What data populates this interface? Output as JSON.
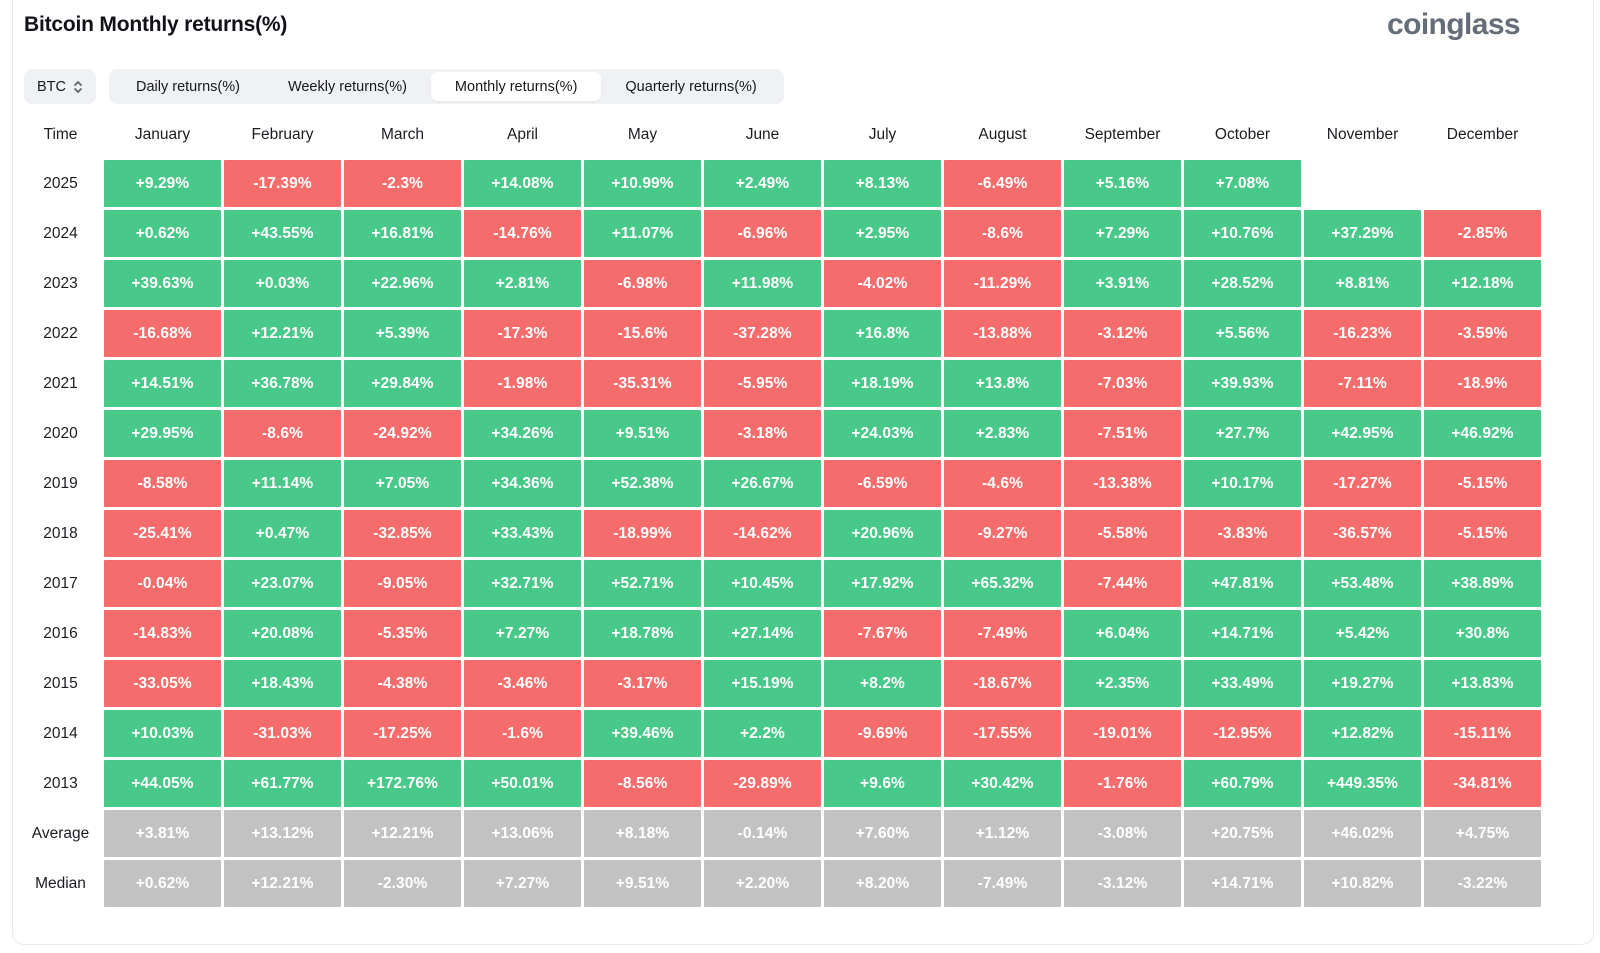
{
  "header": {
    "title": "Bitcoin Monthly returns(%)",
    "logo": "coinglass"
  },
  "controls": {
    "symbol": "BTC",
    "tabs": [
      {
        "label": "Daily returns(%)",
        "active": false
      },
      {
        "label": "Weekly returns(%)",
        "active": false
      },
      {
        "label": "Monthly returns(%)",
        "active": true
      },
      {
        "label": "Quarterly returns(%)",
        "active": false
      }
    ]
  },
  "colors": {
    "positive": "#48c98a",
    "negative": "#f56c6c",
    "summary": "#c2c2c2"
  },
  "table": {
    "corner_label": "Time",
    "months": [
      "January",
      "February",
      "March",
      "April",
      "May",
      "June",
      "July",
      "August",
      "September",
      "October",
      "November",
      "December"
    ],
    "rows": [
      {
        "label": "2025",
        "type": "year",
        "values": [
          "+9.29%",
          "-17.39%",
          "-2.3%",
          "+14.08%",
          "+10.99%",
          "+2.49%",
          "+8.13%",
          "-6.49%",
          "+5.16%",
          "+7.08%",
          "",
          ""
        ]
      },
      {
        "label": "2024",
        "type": "year",
        "values": [
          "+0.62%",
          "+43.55%",
          "+16.81%",
          "-14.76%",
          "+11.07%",
          "-6.96%",
          "+2.95%",
          "-8.6%",
          "+7.29%",
          "+10.76%",
          "+37.29%",
          "-2.85%"
        ]
      },
      {
        "label": "2023",
        "type": "year",
        "values": [
          "+39.63%",
          "+0.03%",
          "+22.96%",
          "+2.81%",
          "-6.98%",
          "+11.98%",
          "-4.02%",
          "-11.29%",
          "+3.91%",
          "+28.52%",
          "+8.81%",
          "+12.18%"
        ]
      },
      {
        "label": "2022",
        "type": "year",
        "values": [
          "-16.68%",
          "+12.21%",
          "+5.39%",
          "-17.3%",
          "-15.6%",
          "-37.28%",
          "+16.8%",
          "-13.88%",
          "-3.12%",
          "+5.56%",
          "-16.23%",
          "-3.59%"
        ]
      },
      {
        "label": "2021",
        "type": "year",
        "values": [
          "+14.51%",
          "+36.78%",
          "+29.84%",
          "-1.98%",
          "-35.31%",
          "-5.95%",
          "+18.19%",
          "+13.8%",
          "-7.03%",
          "+39.93%",
          "-7.11%",
          "-18.9%"
        ]
      },
      {
        "label": "2020",
        "type": "year",
        "values": [
          "+29.95%",
          "-8.6%",
          "-24.92%",
          "+34.26%",
          "+9.51%",
          "-3.18%",
          "+24.03%",
          "+2.83%",
          "-7.51%",
          "+27.7%",
          "+42.95%",
          "+46.92%"
        ]
      },
      {
        "label": "2019",
        "type": "year",
        "values": [
          "-8.58%",
          "+11.14%",
          "+7.05%",
          "+34.36%",
          "+52.38%",
          "+26.67%",
          "-6.59%",
          "-4.6%",
          "-13.38%",
          "+10.17%",
          "-17.27%",
          "-5.15%"
        ]
      },
      {
        "label": "2018",
        "type": "year",
        "values": [
          "-25.41%",
          "+0.47%",
          "-32.85%",
          "+33.43%",
          "-18.99%",
          "-14.62%",
          "+20.96%",
          "-9.27%",
          "-5.58%",
          "-3.83%",
          "-36.57%",
          "-5.15%"
        ]
      },
      {
        "label": "2017",
        "type": "year",
        "values": [
          "-0.04%",
          "+23.07%",
          "-9.05%",
          "+32.71%",
          "+52.71%",
          "+10.45%",
          "+17.92%",
          "+65.32%",
          "-7.44%",
          "+47.81%",
          "+53.48%",
          "+38.89%"
        ]
      },
      {
        "label": "2016",
        "type": "year",
        "values": [
          "-14.83%",
          "+20.08%",
          "-5.35%",
          "+7.27%",
          "+18.78%",
          "+27.14%",
          "-7.67%",
          "-7.49%",
          "+6.04%",
          "+14.71%",
          "+5.42%",
          "+30.8%"
        ]
      },
      {
        "label": "2015",
        "type": "year",
        "values": [
          "-33.05%",
          "+18.43%",
          "-4.38%",
          "-3.46%",
          "-3.17%",
          "+15.19%",
          "+8.2%",
          "-18.67%",
          "+2.35%",
          "+33.49%",
          "+19.27%",
          "+13.83%"
        ]
      },
      {
        "label": "2014",
        "type": "year",
        "values": [
          "+10.03%",
          "-31.03%",
          "-17.25%",
          "-1.6%",
          "+39.46%",
          "+2.2%",
          "-9.69%",
          "-17.55%",
          "-19.01%",
          "-12.95%",
          "+12.82%",
          "-15.11%"
        ]
      },
      {
        "label": "2013",
        "type": "year",
        "values": [
          "+44.05%",
          "+61.77%",
          "+172.76%",
          "+50.01%",
          "-8.56%",
          "-29.89%",
          "+9.6%",
          "+30.42%",
          "-1.76%",
          "+60.79%",
          "+449.35%",
          "-34.81%"
        ]
      },
      {
        "label": "Average",
        "type": "summary",
        "values": [
          "+3.81%",
          "+13.12%",
          "+12.21%",
          "+13.06%",
          "+8.18%",
          "-0.14%",
          "+7.60%",
          "+1.12%",
          "-3.08%",
          "+20.75%",
          "+46.02%",
          "+4.75%"
        ]
      },
      {
        "label": "Median",
        "type": "summary",
        "values": [
          "+0.62%",
          "+12.21%",
          "-2.30%",
          "+7.27%",
          "+9.51%",
          "+2.20%",
          "+8.20%",
          "-7.49%",
          "-3.12%",
          "+14.71%",
          "+10.82%",
          "-3.22%"
        ]
      }
    ]
  }
}
